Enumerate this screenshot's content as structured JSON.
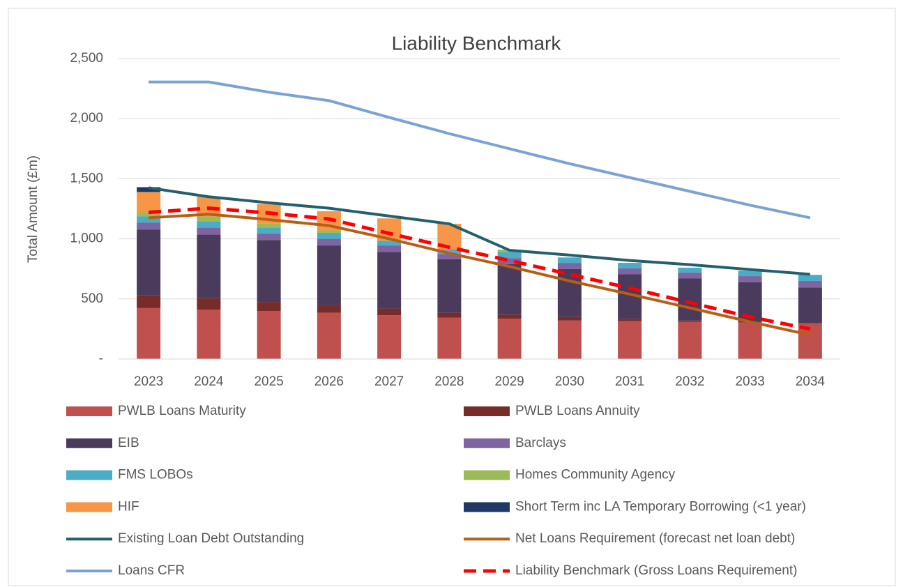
{
  "chart_data": {
    "type": "bar",
    "title": "Liability Benchmark",
    "y_label": "Total Amount (£m)",
    "categories": [
      "2023",
      "2024",
      "2025",
      "2026",
      "2027",
      "2028",
      "2029",
      "2030",
      "2031",
      "2032",
      "2033",
      "2034"
    ],
    "ylim": [
      0,
      2500
    ],
    "yticks": [
      {
        "value": 0,
        "label": "-"
      },
      500,
      {
        "value": 1000,
        "label": "1,000"
      },
      {
        "value": 1500,
        "label": "1,500"
      },
      {
        "value": 2000,
        "label": "2,000"
      },
      {
        "value": 2500,
        "label": "2,500"
      }
    ],
    "grid": true,
    "stacked": true,
    "legend": "bottom",
    "series": [
      {
        "name": "PWLB Loans Maturity",
        "type": "bar",
        "color": "#c0504d",
        "values": [
          424,
          410,
          400,
          385,
          365,
          345,
          335,
          320,
          315,
          310,
          305,
          295
        ]
      },
      {
        "name": "PWLB Loans Annuity",
        "type": "bar",
        "color": "#772c2a",
        "values": [
          105,
          96,
          75,
          65,
          55,
          40,
          35,
          30,
          20,
          10,
          5,
          5
        ]
      },
      {
        "name": "EIB",
        "type": "bar",
        "color": "#4a3b5c",
        "values": [
          547,
          529,
          515,
          495,
          470,
          445,
          420,
          400,
          370,
          350,
          330,
          295
        ]
      },
      {
        "name": "Barclays",
        "type": "bar",
        "color": "#8064a2",
        "values": [
          58,
          58,
          55,
          55,
          55,
          45,
          50,
          50,
          50,
          50,
          50,
          55
        ]
      },
      {
        "name": "FMS LOBOs",
        "type": "bar",
        "color": "#4bacc6",
        "values": [
          52,
          52,
          50,
          50,
          40,
          40,
          50,
          45,
          45,
          40,
          45,
          50
        ]
      },
      {
        "name": "Homes Community Agency",
        "type": "bar",
        "color": "#9bbb59",
        "values": [
          35,
          41,
          35,
          20,
          0,
          0,
          20,
          0,
          0,
          0,
          0,
          0
        ]
      },
      {
        "name": "HIF",
        "type": "bar",
        "color": "#f79646",
        "values": [
          169,
          163,
          160,
          160,
          185,
          210,
          0,
          0,
          0,
          0,
          0,
          0
        ]
      },
      {
        "name": "Short Term inc LA Temporary Borrowing (<1 year)",
        "type": "bar",
        "color": "#1f3864",
        "values": [
          40,
          0,
          0,
          0,
          0,
          0,
          0,
          0,
          0,
          0,
          0,
          0
        ]
      },
      {
        "name": "Existing Loan Debt Outstanding",
        "type": "line",
        "color": "#23606e",
        "values": [
          1425,
          1350,
          1300,
          1255,
          1190,
          1125,
          905,
          865,
          820,
          785,
          745,
          705
        ]
      },
      {
        "name": "Net Loans Requirement (forecast net loan debt)",
        "type": "line",
        "color": "#b85f16",
        "values": [
          1175,
          1205,
          1160,
          1110,
          1000,
          880,
          770,
          650,
          540,
          425,
          310,
          200
        ]
      },
      {
        "name": "Loans CFR",
        "type": "line",
        "color": "#7aa3d4",
        "values": [
          2305,
          2305,
          2220,
          2150,
          2010,
          1875,
          1750,
          1625,
          1510,
          1395,
          1280,
          1175
        ]
      },
      {
        "name": "Liability Benchmark (Gross Loans Requirement)",
        "type": "line",
        "color": "#ff0000",
        "dashed": true,
        "values": [
          1220,
          1255,
          1215,
          1165,
          1045,
          930,
          820,
          705,
          590,
          470,
          350,
          250
        ]
      }
    ]
  }
}
